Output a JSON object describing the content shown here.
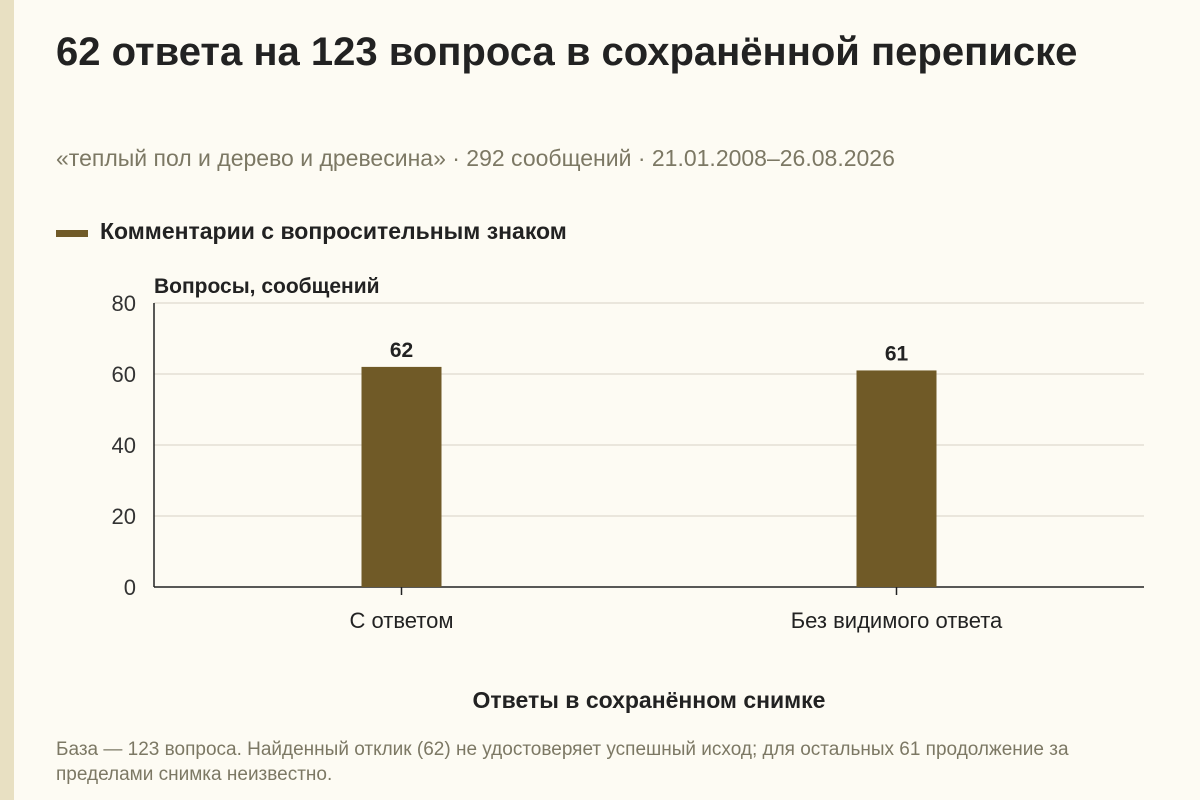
{
  "header": {
    "title": "62 ответа на 123 вопроса в сохранённой переписке",
    "subtitle": "«теплый пол и дерево и древесина» · 292 сообщений · 21.01.2008–26.08.2026"
  },
  "legend": {
    "label": "Комментарии с вопросительным знаком",
    "color": "#705a27"
  },
  "chart_data": {
    "type": "bar",
    "title": "62 ответа на 123 вопроса в сохранённой переписке",
    "ylabel": "Вопросы, сообщений",
    "xlabel": "Ответы в сохранённом снимке",
    "categories": [
      "С ответом",
      "Без видимого ответа"
    ],
    "series": [
      {
        "name": "Комментарии с вопросительным знаком",
        "values": [
          62,
          61
        ],
        "color": "#705a27"
      }
    ],
    "ylim": [
      0,
      80
    ],
    "yticks": [
      0,
      20,
      40,
      60,
      80
    ],
    "grid": true,
    "data_labels": true,
    "legend_position": "top-left"
  },
  "footnote": "База — 123 вопроса. Найденный отклик (62) не удостоверяет успешный исход; для остальных 61 продолжение за пределами снимка неизвестно."
}
